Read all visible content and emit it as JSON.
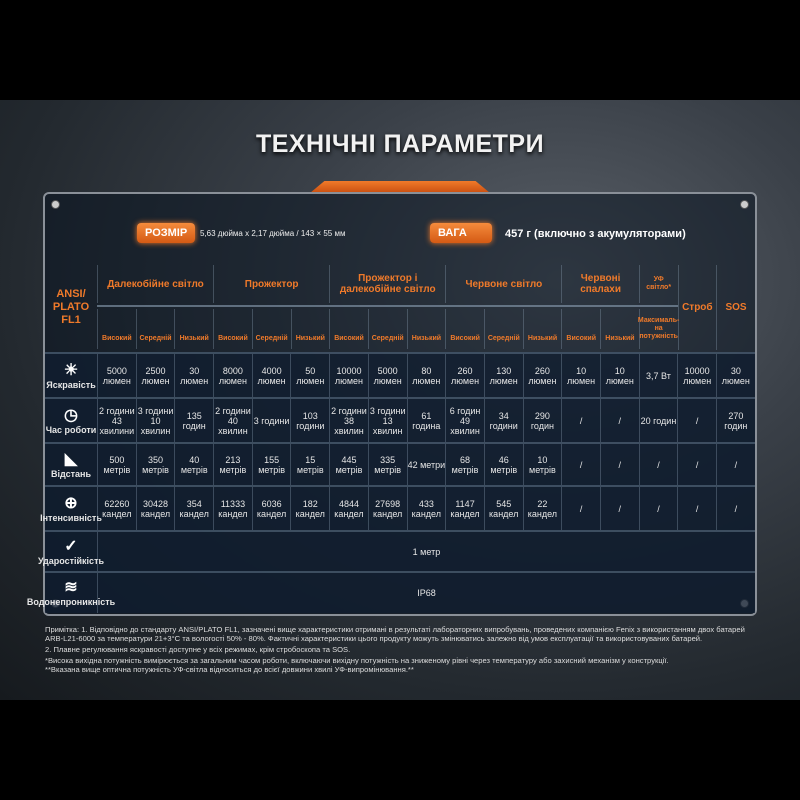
{
  "title": "ТЕХНІЧНІ ПАРАМЕТРИ",
  "size_label": "РОЗМІР",
  "size_value": "5,63 дюйма x 2,17 дюйма / 143 × 55 мм",
  "weight_label": "ВАГА",
  "weight_value": "457 г (включно з акумуляторами)",
  "standard": "ANSI/ PLATO FL1",
  "groups": [
    {
      "label": "Далекобійне світло",
      "span": 3
    },
    {
      "label": "Прожектор",
      "span": 3
    },
    {
      "label": "Прожектор і далекобійне світло",
      "span": 3
    },
    {
      "label": "Червоне світло",
      "span": 3
    },
    {
      "label": "Червоні спалахи",
      "span": 2
    },
    {
      "label": "УФ світло*",
      "span": 1
    },
    {
      "label": "Строб",
      "span": 1
    },
    {
      "label": "SOS",
      "span": 1
    }
  ],
  "modes": [
    "Високий",
    "Середній",
    "Низький",
    "Високий",
    "Середній",
    "Низький",
    "Високий",
    "Середній",
    "Низький",
    "Високий",
    "Середній",
    "Низький",
    "Високий",
    "Низький",
    "Максималь-на потужність",
    "",
    ""
  ],
  "rows": [
    {
      "label": "Яскравість",
      "icon": "brightness-icon",
      "glyph": "☀",
      "values": [
        "5000 люмен",
        "2500 люмен",
        "30 люмен",
        "8000 люмен",
        "4000 люмен",
        "50 люмен",
        "10000 люмен",
        "5000 люмен",
        "80 люмен",
        "260 люмен",
        "130 люмен",
        "260 люмен",
        "10 люмен",
        "10 люмен",
        "3,7 Вт",
        "10000 люмен",
        "30 люмен"
      ]
    },
    {
      "label": "Час роботи",
      "icon": "clock-icon",
      "glyph": "◷",
      "values": [
        "2 години 43 хвилини",
        "3 години 10 хвилин",
        "135 годин",
        "2 години 40 хвилин",
        "3 години",
        "103 години",
        "2 години 38 хвилин",
        "3 години 13 хвилин",
        "61 година",
        "6 годин 49 хвилин",
        "34 години",
        "290 годин",
        "/",
        "/",
        "20 годин",
        "/",
        "270 годин"
      ]
    },
    {
      "label": "Відстань",
      "icon": "distance-icon",
      "glyph": "◣",
      "values": [
        "500 метрів",
        "350 метрів",
        "40 метрів",
        "213 метрів",
        "155 метрів",
        "15 метрів",
        "445 метрів",
        "335 метрів",
        "42 метри",
        "68 метрів",
        "46 метрів",
        "10 метрів",
        "/",
        "/",
        "/",
        "/",
        "/"
      ]
    },
    {
      "label": "Інтенсивність",
      "icon": "intensity-icon",
      "glyph": "⊕",
      "values": [
        "62260 кандел",
        "30428 кандел",
        "354 кандел",
        "11333 кандел",
        "6036 кандел",
        "182 кандел",
        "4844 кандел",
        "27698 кандел",
        "433 кандел",
        "1147 кандел",
        "545 кандел",
        "22 кандел",
        "/",
        "/",
        "/",
        "/",
        "/"
      ]
    }
  ],
  "impact": {
    "label": "Ударостійкість",
    "icon": "impact-icon",
    "glyph": "✓",
    "value": "1 метр"
  },
  "waterproof": {
    "label": "Водонепроникність",
    "icon": "waterproof-icon",
    "glyph": "≋",
    "value": "IP68"
  },
  "notes": [
    "Примітка: 1. Відповідно до стандарту ANSI/PLATO FL1, зазначені вище характеристики отримані в результаті лабораторних випробувань, проведених компанією Fenix з використанням двох батарей ARB-L21-6000 за температури 21+3°C та вологості 50% - 80%. Фактичні характеристики цього продукту можуть змінюватись залежно від умов експлуатації та використовуваних батарей.",
    "2. Плавне регулювання яскравості доступне у всіх режимах, крім стробоскопа та SOS.",
    "*Висока вихідна потужність вимірюється за загальним часом роботи, включаючи вихідну потужність на зниженому рівні через температуру або захисний механізм у конструкції.",
    "**Вказана вище оптична потужність УФ-світла відноситься до всієї довжини хвилі УФ-випромінювання.**"
  ],
  "colors": {
    "accent": "#f07a2a",
    "panel": "#101e30"
  }
}
